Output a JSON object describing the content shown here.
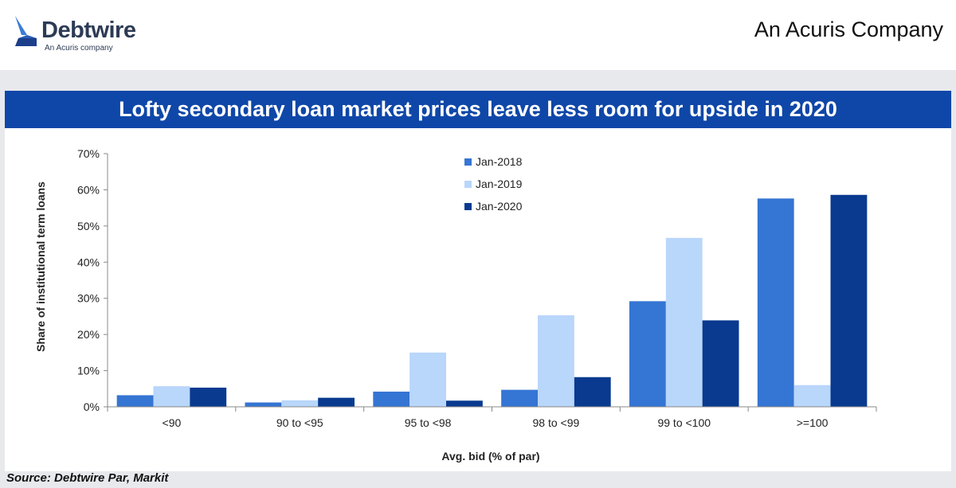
{
  "header": {
    "logo_name": "Debtwire",
    "logo_tagline": "An Acuris company",
    "company": "An Acuris Company"
  },
  "colors": {
    "title_bar": "#0f47a8",
    "background_band": "#e8e9ed"
  },
  "chart_data": {
    "type": "bar",
    "title": "Lofty secondary loan market prices leave less room for upside in 2020",
    "xlabel": "Avg. bid (% of par)",
    "ylabel": "Share of institutional term loans",
    "categories": [
      "<90",
      "90 to <95",
      "95 to <98",
      "98 to <99",
      "99 to <100",
      ">=100"
    ],
    "series": [
      {
        "name": "Jan-2018",
        "color": "#3575d3",
        "values": [
          3.2,
          1.2,
          4.2,
          4.7,
          29.2,
          57.6
        ]
      },
      {
        "name": "Jan-2019",
        "color": "#b9d6fb",
        "values": [
          5.7,
          1.8,
          15.0,
          25.3,
          46.7,
          6.0
        ]
      },
      {
        "name": "Jan-2020",
        "color": "#093a90",
        "values": [
          5.3,
          2.5,
          1.7,
          8.2,
          23.9,
          58.6
        ]
      }
    ],
    "ylim": [
      0,
      70
    ],
    "yticks": [
      "0%",
      "10%",
      "20%",
      "30%",
      "40%",
      "50%",
      "60%",
      "70%"
    ],
    "legend_position": "top-center",
    "grid": false
  },
  "footer": {
    "source": "Source: Debtwire Par, Markit"
  }
}
